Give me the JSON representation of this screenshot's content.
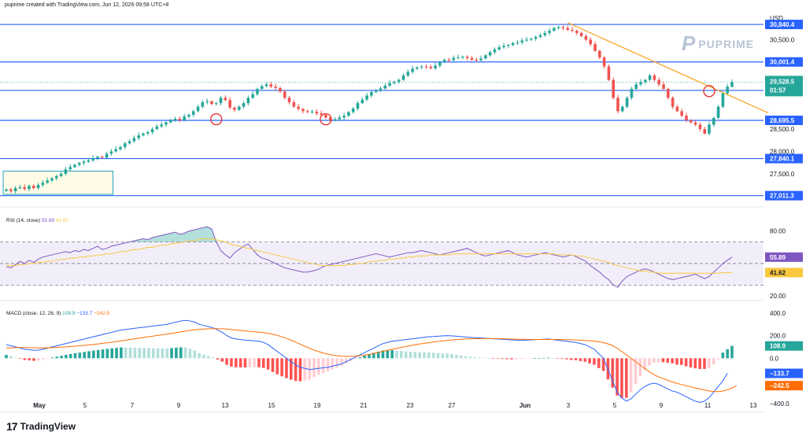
{
  "header": {
    "text": "puprime created with TradingView.com, Jun 12, 2026 09:58 UTC+8"
  },
  "brand": {
    "mark": "P",
    "name": "PUPRIME"
  },
  "footer": {
    "logo_mark": "17",
    "name": "TradingView"
  },
  "colors": {
    "up": "#26a69a",
    "down": "#ef5350",
    "level": "#2962ff",
    "trend": "#f7a21b",
    "rsi": "#7e57c2",
    "rsi_ma": "#f9c840",
    "macd": "#2962ff",
    "signal": "#ff6d00"
  },
  "chart_data": [
    {
      "type": "candlestick",
      "name": "price",
      "unit_label": "USD",
      "ylim": [
        26900,
        31000
      ],
      "x_ticks": [
        "May",
        "5",
        "7",
        "9",
        "13",
        "15",
        "19",
        "21",
        "23",
        "27",
        "Jun",
        "3",
        "5",
        "9",
        "11",
        "13"
      ],
      "y_ticks": [
        "30,500.0",
        "28,500.0",
        "28,000.0",
        "27,500.0"
      ],
      "last_price": {
        "value": "29,528.5",
        "countdown": "01:57"
      },
      "levels": [
        {
          "value": 30840.4,
          "label": "30,840.4"
        },
        {
          "value": 30001.4,
          "label": "30,001.4"
        },
        {
          "value": 29364.8,
          "label": "29,364.8"
        },
        {
          "value": 28695.5,
          "label": "28,695.5"
        },
        {
          "value": 27840.1,
          "label": "27,840.1"
        },
        {
          "value": 27011.3,
          "label": "27,011.3"
        }
      ],
      "trendline": {
        "from": {
          "bar": 123,
          "value": 30880
        },
        "to": {
          "bar": 160,
          "value": 29180
        }
      },
      "markers": [
        {
          "bar": 46,
          "value": 28720
        },
        {
          "bar": 70,
          "value": 28720
        },
        {
          "bar": 154,
          "value": 29350
        }
      ],
      "zone": {
        "from_bar": 0,
        "to_bar": 22,
        "high": 27560,
        "low": 27040
      },
      "closes": [
        27150,
        27110,
        27180,
        27200,
        27160,
        27230,
        27180,
        27250,
        27300,
        27350,
        27400,
        27450,
        27500,
        27600,
        27650,
        27700,
        27740,
        27770,
        27800,
        27850,
        27880,
        27860,
        27950,
        28000,
        28050,
        28100,
        28180,
        28230,
        28300,
        28360,
        28400,
        28430,
        28500,
        28560,
        28600,
        28650,
        28700,
        28730,
        28700,
        28780,
        28820,
        28900,
        29000,
        29100,
        29120,
        29060,
        29080,
        29200,
        29150,
        28980,
        28930,
        29000,
        29080,
        29200,
        29280,
        29400,
        29460,
        29500,
        29450,
        29420,
        29340,
        29200,
        29100,
        29000,
        28950,
        28900,
        28880,
        28890,
        28850,
        28820,
        28760,
        28700,
        28720,
        28760,
        28800,
        28880,
        28960,
        29080,
        29160,
        29250,
        29330,
        29360,
        29410,
        29470,
        29530,
        29560,
        29600,
        29700,
        29780,
        29850,
        29880,
        29900,
        29890,
        29860,
        29920,
        30000,
        30050,
        30040,
        30090,
        30100,
        30120,
        30090,
        30050,
        30040,
        30080,
        30150,
        30220,
        30280,
        30330,
        30360,
        30380,
        30420,
        30440,
        30480,
        30500,
        30520,
        30560,
        30600,
        30650,
        30700,
        30760,
        30780,
        30760,
        30720,
        30700,
        30650,
        30580,
        30500,
        30400,
        30250,
        30100,
        29900,
        29600,
        29200,
        28900,
        29000,
        29200,
        29400,
        29500,
        29550,
        29600,
        29700,
        29600,
        29500,
        29400,
        29200,
        29000,
        28900,
        28800,
        28700,
        28650,
        28600,
        28500,
        28400,
        28600,
        28750,
        29000,
        29300,
        29450,
        29550
      ]
    },
    {
      "type": "line",
      "name": "RSI (14, close)",
      "title": "RSI (14, close)",
      "values_label": [
        "55.89",
        "41.62"
      ],
      "ylim": [
        15,
        90
      ],
      "y_ticks": [
        "80.00",
        "20.00"
      ],
      "bands": {
        "upper": 70,
        "middle": 50,
        "lower": 30
      },
      "series": [
        {
          "name": "RSI",
          "values": [
            47,
            46,
            49,
            52,
            50,
            53,
            51,
            54,
            56,
            57,
            58,
            59,
            60,
            61,
            60,
            62,
            61,
            63,
            62,
            64,
            66,
            63,
            64,
            66,
            67,
            68,
            69,
            70,
            71,
            72,
            73,
            72,
            74,
            75,
            76,
            77,
            78,
            79,
            77,
            78,
            80,
            81,
            82,
            83,
            84,
            82,
            70,
            62,
            58,
            55,
            60,
            63,
            66,
            68,
            63,
            58,
            55,
            54,
            52,
            50,
            48,
            46,
            45,
            44,
            43,
            42,
            42,
            43,
            44,
            46,
            48,
            49,
            50,
            51,
            52,
            53,
            54,
            55,
            56,
            57,
            58,
            59,
            58,
            57,
            56,
            57,
            58,
            59,
            60,
            60,
            61,
            62,
            61,
            60,
            59,
            58,
            59,
            60,
            61,
            62,
            63,
            64,
            62,
            60,
            58,
            57,
            58,
            59,
            60,
            61,
            62,
            60,
            58,
            57,
            56,
            57,
            58,
            59,
            60,
            59,
            58,
            57,
            56,
            57,
            58,
            56,
            54,
            52,
            48,
            45,
            42,
            38,
            35,
            30,
            28,
            34,
            38,
            40,
            42,
            44,
            45,
            44,
            42,
            40,
            38,
            36,
            35,
            36,
            37,
            38,
            39,
            40,
            38,
            36,
            38,
            42,
            46,
            50,
            53,
            55.89
          ]
        },
        {
          "name": "MA",
          "values": [
            48,
            48,
            48,
            49,
            49,
            50,
            50,
            51,
            51,
            52,
            52,
            53,
            54,
            54,
            55,
            55,
            56,
            56,
            57,
            57,
            58,
            58,
            59,
            59,
            60,
            61,
            61,
            62,
            63,
            63,
            64,
            65,
            65,
            66,
            67,
            67,
            68,
            69,
            69,
            70,
            71,
            71,
            72,
            73,
            73,
            73,
            72,
            71,
            70,
            68,
            67,
            66,
            65,
            64,
            63,
            62,
            61,
            60,
            59,
            58,
            57,
            56,
            55,
            54,
            53,
            52,
            51,
            50,
            49,
            48,
            48,
            48,
            48,
            48,
            48,
            49,
            49,
            50,
            50,
            51,
            52,
            52,
            53,
            53,
            54,
            54,
            55,
            55,
            56,
            56,
            57,
            57,
            57,
            58,
            58,
            58,
            58,
            58,
            59,
            59,
            59,
            59,
            59,
            59,
            59,
            59,
            59,
            59,
            59,
            59,
            59,
            59,
            59,
            59,
            59,
            59,
            59,
            59,
            59,
            59,
            59,
            58,
            58,
            58,
            58,
            57,
            57,
            56,
            55,
            54,
            53,
            52,
            51,
            49,
            48,
            47,
            46,
            45,
            44,
            43,
            43,
            42,
            42,
            41,
            41,
            41,
            41,
            41,
            41,
            41,
            41,
            41,
            41,
            41,
            41,
            41,
            41,
            41.5,
            41.6,
            41.62
          ]
        }
      ]
    },
    {
      "type": "line",
      "name": "MACD (close, 12, 26, 9)",
      "title": "MACD (close, 12, 26, 9)",
      "values_label": [
        "108.9",
        "−133.7",
        "−242.5"
      ],
      "ylim": [
        -450,
        420
      ],
      "y_ticks": [
        "400.0",
        "200.0",
        "0.0",
        "−400.0"
      ],
      "series": [
        {
          "name": "MACD",
          "values": [
            120,
            110,
            100,
            90,
            80,
            75,
            70,
            72,
            80,
            90,
            100,
            110,
            120,
            130,
            140,
            150,
            160,
            170,
            180,
            190,
            200,
            210,
            220,
            230,
            240,
            250,
            255,
            260,
            265,
            270,
            275,
            280,
            285,
            290,
            295,
            300,
            310,
            320,
            330,
            335,
            330,
            320,
            300,
            290,
            280,
            270,
            250,
            230,
            200,
            180,
            170,
            165,
            160,
            158,
            155,
            150,
            140,
            120,
            90,
            60,
            30,
            0,
            -30,
            -60,
            -80,
            -90,
            -100,
            -95,
            -90,
            -85,
            -80,
            -70,
            -60,
            -50,
            -30,
            -10,
            10,
            30,
            50,
            70,
            90,
            110,
            130,
            140,
            150,
            155,
            160,
            165,
            170,
            175,
            180,
            185,
            190,
            192,
            195,
            198,
            200,
            198,
            195,
            192,
            188,
            185,
            182,
            180,
            178,
            175,
            172,
            170,
            168,
            165,
            162,
            160,
            158,
            160,
            162,
            164,
            166,
            168,
            170,
            165,
            160,
            155,
            150,
            145,
            140,
            130,
            120,
            100,
            80,
            40,
            0,
            -100,
            -200,
            -300,
            -350,
            -380,
            -360,
            -320,
            -280,
            -250,
            -230,
            -220,
            -230,
            -250,
            -270,
            -290,
            -300,
            -320,
            -340,
            -360,
            -380,
            -390,
            -380,
            -350,
            -300,
            -250,
            -200,
            -133.7
          ]
        },
        {
          "name": "Signal",
          "values": [
            90,
            92,
            94,
            95,
            95,
            94,
            93,
            92,
            92,
            93,
            94,
            96,
            98,
            100,
            103,
            106,
            110,
            114,
            118,
            122,
            127,
            132,
            137,
            142,
            148,
            154,
            160,
            166,
            172,
            178,
            184,
            190,
            196,
            202,
            208,
            214,
            220,
            226,
            233,
            240,
            247,
            252,
            256,
            258,
            260,
            262,
            262,
            261,
            258,
            254,
            250,
            246,
            242,
            238,
            234,
            230,
            226,
            220,
            212,
            202,
            190,
            176,
            160,
            142,
            124,
            106,
            88,
            72,
            58,
            46,
            36,
            28,
            22,
            18,
            16,
            16,
            18,
            22,
            28,
            35,
            43,
            52,
            61,
            70,
            79,
            88,
            96,
            104,
            112,
            119,
            126,
            132,
            138,
            144,
            149,
            154,
            158,
            162,
            165,
            168,
            170,
            172,
            173,
            174,
            174,
            174,
            174,
            173,
            172,
            171,
            170,
            169,
            168,
            167,
            166,
            166,
            166,
            166,
            166,
            166,
            166,
            165,
            164,
            163,
            162,
            160,
            158,
            155,
            151,
            146,
            138,
            127,
            112,
            88,
            60,
            30,
            0,
            -30,
            -60,
            -90,
            -120,
            -145,
            -165,
            -180,
            -195,
            -210,
            -222,
            -233,
            -243,
            -253,
            -263,
            -272,
            -281,
            -289,
            -295,
            -295,
            -290,
            -280,
            -262,
            -242.5
          ]
        },
        {
          "name": "Histogram",
          "values": [
            30,
            18,
            6,
            -5,
            -15,
            -19,
            -23,
            -20,
            -12,
            -3,
            6,
            14,
            22,
            30,
            37,
            44,
            50,
            56,
            62,
            68,
            73,
            78,
            83,
            88,
            92,
            96,
            95,
            94,
            93,
            92,
            91,
            90,
            89,
            88,
            87,
            86,
            90,
            94,
            97,
            95,
            83,
            68,
            44,
            32,
            20,
            8,
            -12,
            -31,
            -58,
            -74,
            -80,
            -81,
            -82,
            -80,
            -79,
            -80,
            -86,
            -100,
            -122,
            -142,
            -160,
            -176,
            -190,
            -202,
            -204,
            -196,
            -188,
            -167,
            -148,
            -131,
            -116,
            -98,
            -82,
            -68,
            -46,
            -26,
            -8,
            8,
            22,
            35,
            47,
            58,
            69,
            70,
            71,
            67,
            64,
            61,
            58,
            56,
            54,
            53,
            52,
            48,
            46,
            44,
            42,
            36,
            30,
            24,
            18,
            13,
            9,
            6,
            4,
            1,
            -2,
            -4,
            -6,
            -8,
            -10,
            -9,
            -7,
            -4,
            -2,
            0,
            2,
            4,
            5,
            2,
            -2,
            -6,
            -10,
            -15,
            -18,
            -25,
            -31,
            -46,
            -58,
            -87,
            -112,
            -188,
            -260,
            -330,
            -350,
            -350,
            -300,
            -230,
            -160,
            -105,
            -65,
            -40,
            -35,
            -35,
            -40,
            -45,
            -57,
            -59,
            -71,
            -81,
            -89,
            -95,
            -95,
            -85,
            -55,
            -12,
            50,
            80,
            108.9
          ]
        }
      ]
    }
  ]
}
